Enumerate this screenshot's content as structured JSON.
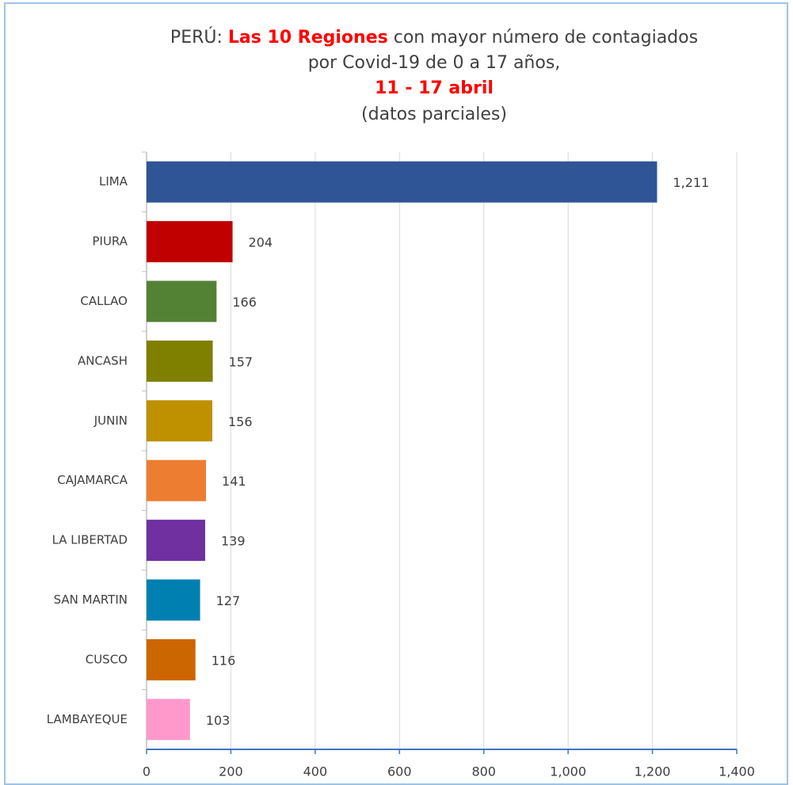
{
  "chart_data": {
    "type": "hbar",
    "title_lines": [
      [
        {
          "text": "PERÚ:"
        },
        {
          "text": "Las 10 Regiones",
          "highlight": true
        },
        {
          "text": "con mayor número de contagiados"
        }
      ],
      [
        {
          "text": "por Covid-19 de 0 a 17 años,"
        }
      ],
      [
        {
          "text": "11 - 17  abril",
          "highlight": true
        }
      ],
      [
        {
          "text": "(datos parciales)"
        }
      ]
    ],
    "highlight_color": "#ff0000",
    "categories": [
      "LIMA",
      "PIURA",
      "CALLAO",
      "ANCASH",
      "JUNIN",
      "CAJAMARCA",
      "LA LIBERTAD",
      "SAN MARTIN",
      "CUSCO",
      "LAMBAYEQUE"
    ],
    "values": [
      1211,
      204,
      166,
      157,
      156,
      141,
      139,
      127,
      116,
      103
    ],
    "value_labels": [
      "1,211",
      "204",
      "166",
      "157",
      "156",
      "141",
      "139",
      "127",
      "116",
      "103"
    ],
    "colors": [
      "#2f5597",
      "#c00000",
      "#548235",
      "#7f7f00",
      "#bf9000",
      "#ed7d31",
      "#7030a0",
      "#0080b0",
      "#cc6600",
      "#ff99cc"
    ],
    "xlim": [
      0,
      1400
    ],
    "xticks": [
      0,
      200,
      400,
      600,
      800,
      {
        "value": 1000,
        "label": "1,000"
      },
      {
        "value": 1200,
        "label": "1,200"
      },
      {
        "value": 1400,
        "label": "1,400"
      }
    ],
    "grid": true
  }
}
